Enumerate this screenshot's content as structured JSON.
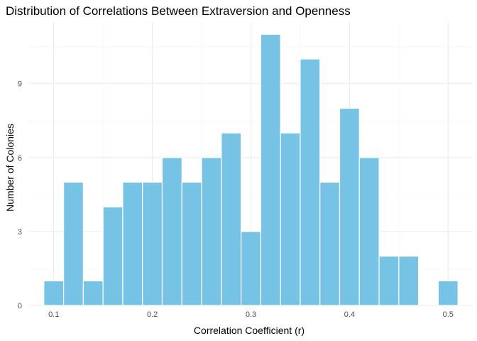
{
  "chart_data": {
    "type": "bar",
    "title": "Distribution of Correlations Between Extraversion and Openness",
    "xlabel": "Correlation Coefficient (r)",
    "ylabel": "Number of Colonies",
    "bin_width": 0.02,
    "bin_centers": [
      0.1,
      0.12,
      0.14,
      0.16,
      0.18,
      0.2,
      0.22,
      0.24,
      0.26,
      0.28,
      0.3,
      0.32,
      0.34,
      0.36,
      0.38,
      0.4,
      0.42,
      0.44,
      0.46,
      0.48,
      0.5
    ],
    "counts": [
      1,
      5,
      1,
      4,
      5,
      5,
      6,
      5,
      6,
      7,
      3,
      11,
      7,
      10,
      5,
      8,
      6,
      2,
      2,
      0,
      1
    ],
    "xlim": [
      0.075,
      0.525
    ],
    "ylim": [
      0,
      11.5
    ],
    "x_ticks": [
      {
        "value": 0.1,
        "label": "0.1"
      },
      {
        "value": 0.2,
        "label": "0.2"
      },
      {
        "value": 0.3,
        "label": "0.3"
      },
      {
        "value": 0.4,
        "label": "0.4"
      },
      {
        "value": 0.5,
        "label": "0.5"
      }
    ],
    "y_ticks": [
      {
        "value": 0,
        "label": "0"
      },
      {
        "value": 3,
        "label": "3"
      },
      {
        "value": 6,
        "label": "6"
      },
      {
        "value": 9,
        "label": "9"
      }
    ],
    "grid": true,
    "bar_color": "#77c3e5",
    "bar_outline": "#ffffff"
  }
}
